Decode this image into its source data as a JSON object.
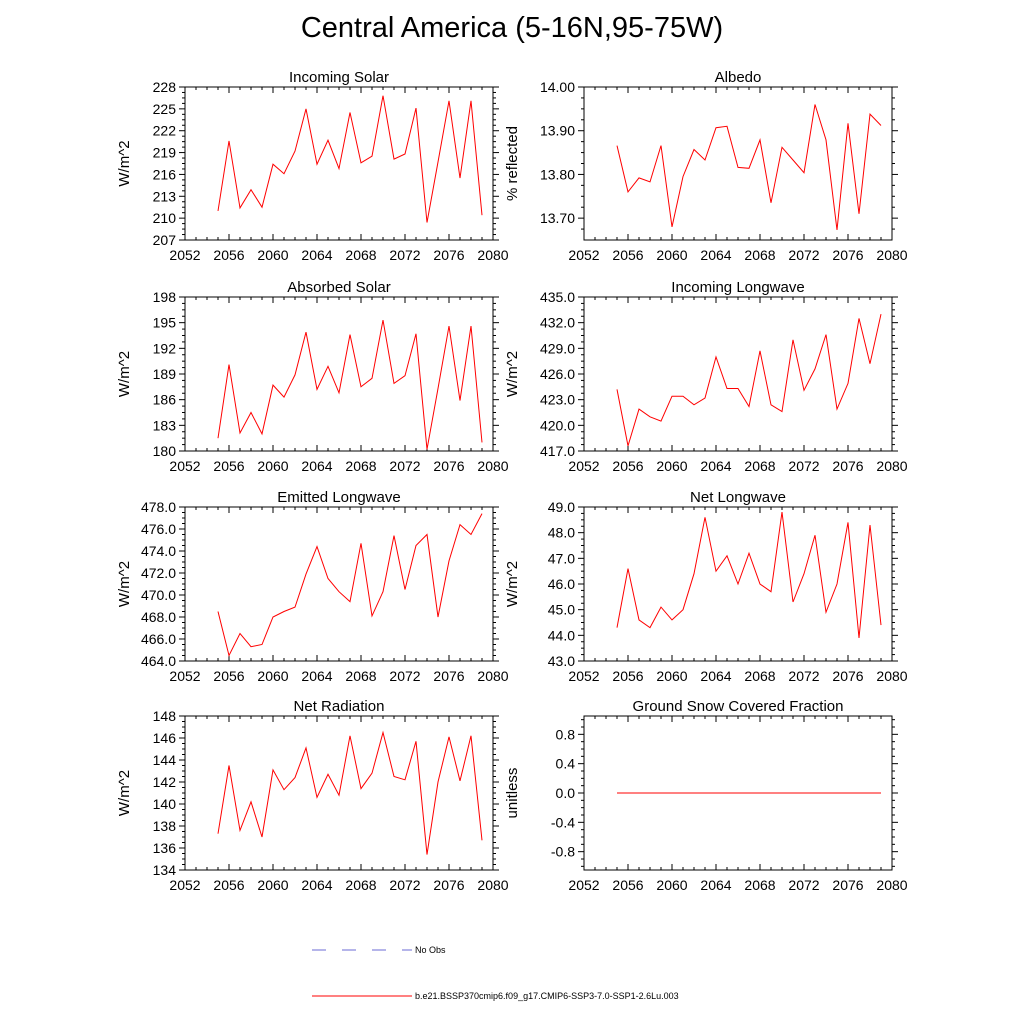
{
  "title": "Central America (5-16N,95-75W)",
  "legend": [
    {
      "label": "No Obs",
      "color": "#6b6bd6",
      "dash": true
    },
    {
      "label": "b.e21.BSSP370cmip6.f09_g17.CMIP6-SSP3-7.0-SSP1-2.6Lu.003",
      "color": "#ff0000",
      "dash": false
    }
  ],
  "chart_data": [
    {
      "type": "line",
      "title": "Incoming Solar",
      "ylabel": "W/m^2",
      "xlim": [
        2052,
        2080
      ],
      "ylim": [
        207,
        228
      ],
      "xticks": [
        2052,
        2056,
        2060,
        2064,
        2068,
        2072,
        2076,
        2080
      ],
      "yticks": [
        "207",
        "210",
        "213",
        "216",
        "219",
        "222",
        "225",
        "228"
      ],
      "x": [
        2055,
        2056,
        2057,
        2058,
        2059,
        2060,
        2061,
        2062,
        2063,
        2064,
        2065,
        2066,
        2067,
        2068,
        2069,
        2070,
        2071,
        2072,
        2073,
        2074,
        2075,
        2076,
        2077,
        2078,
        2079
      ],
      "series": [
        {
          "color": "#ff0000",
          "values": [
            211.0,
            220.6,
            211.4,
            213.9,
            211.5,
            217.4,
            216.1,
            219.2,
            225.0,
            217.4,
            220.7,
            216.8,
            224.5,
            217.6,
            218.5,
            226.8,
            218.1,
            218.8,
            225.1,
            209.4,
            217.7,
            226.1,
            215.5,
            226.1,
            210.4
          ]
        }
      ]
    },
    {
      "type": "line",
      "title": "Albedo",
      "ylabel": "% reflected",
      "xlim": [
        2052,
        2080
      ],
      "ylim": [
        13.65,
        14.0
      ],
      "xticks": [
        2052,
        2056,
        2060,
        2064,
        2068,
        2072,
        2076,
        2080
      ],
      "yticks": [
        "13.70",
        "13.80",
        "13.90",
        "14.00"
      ],
      "x": [
        2055,
        2056,
        2057,
        2058,
        2059,
        2060,
        2061,
        2062,
        2063,
        2064,
        2065,
        2066,
        2067,
        2068,
        2069,
        2070,
        2071,
        2072,
        2073,
        2074,
        2075,
        2076,
        2077,
        2078,
        2079
      ],
      "series": [
        {
          "color": "#ff0000",
          "values": [
            13.866,
            13.76,
            13.792,
            13.783,
            13.866,
            13.68,
            13.795,
            13.857,
            13.833,
            13.907,
            13.91,
            13.816,
            13.814,
            13.879,
            13.735,
            13.862,
            13.833,
            13.804,
            13.96,
            13.879,
            13.673,
            13.917,
            13.71,
            13.938,
            13.912
          ]
        }
      ]
    },
    {
      "type": "line",
      "title": "Absorbed Solar",
      "ylabel": "W/m^2",
      "xlim": [
        2052,
        2080
      ],
      "ylim": [
        180,
        198
      ],
      "xticks": [
        2052,
        2056,
        2060,
        2064,
        2068,
        2072,
        2076,
        2080
      ],
      "yticks": [
        "180",
        "183",
        "186",
        "189",
        "192",
        "195",
        "198"
      ],
      "x": [
        2055,
        2056,
        2057,
        2058,
        2059,
        2060,
        2061,
        2062,
        2063,
        2064,
        2065,
        2066,
        2067,
        2068,
        2069,
        2070,
        2071,
        2072,
        2073,
        2074,
        2075,
        2076,
        2077,
        2078,
        2079
      ],
      "series": [
        {
          "color": "#ff0000",
          "values": [
            181.5,
            190.1,
            182.1,
            184.5,
            182.0,
            187.7,
            186.3,
            188.9,
            193.9,
            187.2,
            189.9,
            186.8,
            193.6,
            187.5,
            188.5,
            195.3,
            187.9,
            188.8,
            193.7,
            180.2,
            187.3,
            194.6,
            185.9,
            194.6,
            181.0
          ]
        }
      ]
    },
    {
      "type": "line",
      "title": "Incoming Longwave",
      "ylabel": "W/m^2",
      "xlim": [
        2052,
        2080
      ],
      "ylim": [
        417.0,
        435.0
      ],
      "xticks": [
        2052,
        2056,
        2060,
        2064,
        2068,
        2072,
        2076,
        2080
      ],
      "yticks": [
        "417.0",
        "420.0",
        "423.0",
        "426.0",
        "429.0",
        "432.0",
        "435.0"
      ],
      "x": [
        2055,
        2056,
        2057,
        2058,
        2059,
        2060,
        2061,
        2062,
        2063,
        2064,
        2065,
        2066,
        2067,
        2068,
        2069,
        2070,
        2071,
        2072,
        2073,
        2074,
        2075,
        2076,
        2077,
        2078,
        2079
      ],
      "series": [
        {
          "color": "#ff0000",
          "values": [
            424.2,
            417.6,
            421.9,
            421.0,
            420.5,
            423.4,
            423.4,
            422.4,
            423.2,
            428.0,
            424.3,
            424.3,
            422.2,
            428.7,
            422.4,
            421.6,
            430.0,
            424.1,
            426.6,
            430.6,
            421.9,
            424.9,
            432.5,
            427.2,
            433.0
          ]
        }
      ]
    },
    {
      "type": "line",
      "title": "Emitted Longwave",
      "ylabel": "W/m^2",
      "xlim": [
        2052,
        2080
      ],
      "ylim": [
        464.0,
        478.0
      ],
      "xticks": [
        2052,
        2056,
        2060,
        2064,
        2068,
        2072,
        2076,
        2080
      ],
      "yticks": [
        "464.0",
        "466.0",
        "468.0",
        "470.0",
        "472.0",
        "474.0",
        "476.0",
        "478.0"
      ],
      "x": [
        2055,
        2056,
        2057,
        2058,
        2059,
        2060,
        2061,
        2062,
        2063,
        2064,
        2065,
        2066,
        2067,
        2068,
        2069,
        2070,
        2071,
        2072,
        2073,
        2074,
        2075,
        2076,
        2077,
        2078,
        2079
      ],
      "series": [
        {
          "color": "#ff0000",
          "values": [
            468.5,
            464.5,
            466.5,
            465.3,
            465.5,
            468.0,
            468.5,
            468.9,
            471.9,
            474.4,
            471.5,
            470.3,
            469.4,
            474.7,
            468.1,
            470.3,
            475.4,
            470.5,
            474.5,
            475.5,
            468.0,
            473.1,
            476.4,
            475.5,
            477.4
          ]
        }
      ]
    },
    {
      "type": "line",
      "title": "Net Longwave",
      "ylabel": "W/m^2",
      "xlim": [
        2052,
        2080
      ],
      "ylim": [
        43.0,
        49.0
      ],
      "xticks": [
        2052,
        2056,
        2060,
        2064,
        2068,
        2072,
        2076,
        2080
      ],
      "yticks": [
        "43.0",
        "44.0",
        "45.0",
        "46.0",
        "47.0",
        "48.0",
        "49.0"
      ],
      "x": [
        2055,
        2056,
        2057,
        2058,
        2059,
        2060,
        2061,
        2062,
        2063,
        2064,
        2065,
        2066,
        2067,
        2068,
        2069,
        2070,
        2071,
        2072,
        2073,
        2074,
        2075,
        2076,
        2077,
        2078,
        2079
      ],
      "series": [
        {
          "color": "#ff0000",
          "values": [
            44.3,
            46.6,
            44.6,
            44.3,
            45.1,
            44.6,
            45.0,
            46.4,
            48.6,
            46.5,
            47.1,
            46.0,
            47.2,
            46.0,
            45.7,
            48.8,
            45.3,
            46.4,
            47.9,
            44.9,
            46.0,
            48.4,
            43.9,
            48.3,
            44.4
          ]
        }
      ]
    },
    {
      "type": "line",
      "title": "Net Radiation",
      "ylabel": "W/m^2",
      "xlim": [
        2052,
        2080
      ],
      "ylim": [
        134,
        148
      ],
      "xticks": [
        2052,
        2056,
        2060,
        2064,
        2068,
        2072,
        2076,
        2080
      ],
      "yticks": [
        "134",
        "136",
        "138",
        "140",
        "142",
        "144",
        "146",
        "148"
      ],
      "x": [
        2055,
        2056,
        2057,
        2058,
        2059,
        2060,
        2061,
        2062,
        2063,
        2064,
        2065,
        2066,
        2067,
        2068,
        2069,
        2070,
        2071,
        2072,
        2073,
        2074,
        2075,
        2076,
        2077,
        2078,
        2079
      ],
      "series": [
        {
          "color": "#ff0000",
          "values": [
            137.3,
            143.5,
            137.6,
            140.2,
            137.0,
            143.1,
            141.3,
            142.4,
            145.1,
            140.6,
            142.7,
            140.8,
            146.2,
            141.4,
            142.8,
            146.5,
            142.5,
            142.2,
            145.7,
            135.4,
            142.0,
            146.1,
            142.1,
            146.2,
            136.7
          ]
        }
      ]
    },
    {
      "type": "line",
      "title": "Ground Snow Covered Fraction",
      "ylabel": "unitless",
      "xlim": [
        2052,
        2080
      ],
      "ylim": [
        -1.05,
        1.05
      ],
      "xticks": [
        2052,
        2056,
        2060,
        2064,
        2068,
        2072,
        2076,
        2080
      ],
      "yticks": [
        "-0.8",
        "-0.4",
        "0.0",
        "0.4",
        "0.8"
      ],
      "x": [
        2055,
        2056,
        2057,
        2058,
        2059,
        2060,
        2061,
        2062,
        2063,
        2064,
        2065,
        2066,
        2067,
        2068,
        2069,
        2070,
        2071,
        2072,
        2073,
        2074,
        2075,
        2076,
        2077,
        2078,
        2079
      ],
      "series": [
        {
          "color": "#ff0000",
          "values": [
            0,
            0,
            0,
            0,
            0,
            0,
            0,
            0,
            0,
            0,
            0,
            0,
            0,
            0,
            0,
            0,
            0,
            0,
            0,
            0,
            0,
            0,
            0,
            0,
            0
          ]
        }
      ]
    }
  ]
}
